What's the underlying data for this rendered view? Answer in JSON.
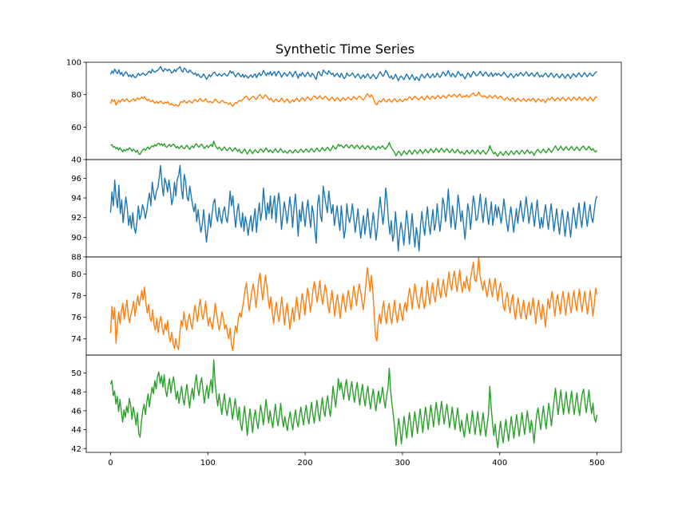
{
  "chart_data": {
    "type": "line",
    "title": "Synthetic Time Series",
    "xlim": [
      -25,
      525
    ],
    "x_ticks": [
      0,
      100,
      200,
      300,
      400,
      500
    ],
    "x_tick_labels": [
      "0",
      "100",
      "200",
      "300",
      "400",
      "500"
    ],
    "x_start": 0,
    "x_end": 500,
    "series_colors": [
      "#1f77b4",
      "#ff7f0e",
      "#2ca02c"
    ],
    "series": [
      {
        "values": [
          92.5,
          94.6,
          93.2,
          95.8,
          94.0,
          93.0,
          95.3,
          92.4,
          93.8,
          91.5,
          92.8,
          94.1,
          93.0,
          91.2,
          92.2,
          90.9,
          92.5,
          91.0,
          90.4,
          91.6,
          93.2,
          91.8,
          92.3,
          93.3,
          92.8,
          91.9,
          92.6,
          93.7,
          94.5,
          93.2,
          95.6,
          94.4,
          93.8,
          94.7,
          95.0,
          96.1,
          97.3,
          95.4,
          94.2,
          96.0,
          95.5,
          94.6,
          95.8,
          94.8,
          93.3,
          94.0,
          95.6,
          94.2,
          95.9,
          96.3,
          97.3,
          94.9,
          93.9,
          96.4,
          95.7,
          94.1,
          93.7,
          95.2,
          94.2,
          93.3,
          92.6,
          93.4,
          91.6,
          92.8,
          91.5,
          90.5,
          91.3,
          92.8,
          91.1,
          89.5,
          90.8,
          92.4,
          91.0,
          92.3,
          93.5,
          93.9,
          92.2,
          91.6,
          93.0,
          92.1,
          91.4,
          92.6,
          93.1,
          92.0,
          91.5,
          92.8,
          94.7,
          93.2,
          94.2,
          92.4,
          91.0,
          92.6,
          93.4,
          91.8,
          91.0,
          92.5,
          90.6,
          92.1,
          91.3,
          90.2,
          91.4,
          92.2,
          90.6,
          91.8,
          92.9,
          90.5,
          92.2,
          93.5,
          91.7,
          92.6,
          95.0,
          93.3,
          91.8,
          93.5,
          92.4,
          94.2,
          91.9,
          93.3,
          94.2,
          91.5,
          93.3,
          94.5,
          93.1,
          90.8,
          92.2,
          93.6,
          92.7,
          91.4,
          92.6,
          94.1,
          92.9,
          91.0,
          93.0,
          94.4,
          92.5,
          90.1,
          92.8,
          91.6,
          93.6,
          92.3,
          91.1,
          92.8,
          93.8,
          92.1,
          91.0,
          93.2,
          92.4,
          90.7,
          89.4,
          93.4,
          94.3,
          92.2,
          91.6,
          95.2,
          94.2,
          93.3,
          92.5,
          94.7,
          93.5,
          92.4,
          93.3,
          91.2,
          92.2,
          93.2,
          91.8,
          90.7,
          93.2,
          91.6,
          89.9,
          90.8,
          93.4,
          92.1,
          91.5,
          92.2,
          93.4,
          92.0,
          90.5,
          91.6,
          92.9,
          91.3,
          89.9,
          91.2,
          92.2,
          90.3,
          91.5,
          92.9,
          91.3,
          89.9,
          91.2,
          92.5,
          91.2,
          89.7,
          91.0,
          92.8,
          94.1,
          92.6,
          91.3,
          92.6,
          95.0,
          93.6,
          91.6,
          90.3,
          91.7,
          89.6,
          90.3,
          92.6,
          90.8,
          88.6,
          90.5,
          91.5,
          90.6,
          89.2,
          90.9,
          92.7,
          91.4,
          89.3,
          90.8,
          92.4,
          90.4,
          89.0,
          91.0,
          90.1,
          88.6,
          91.2,
          92.6,
          91.2,
          90.2,
          91.8,
          93.1,
          91.3,
          90.3,
          91.7,
          92.8,
          90.7,
          91.4,
          93.4,
          91.9,
          90.6,
          91.9,
          94.0,
          93.3,
          91.6,
          92.8,
          94.9,
          92.6,
          91.0,
          93.2,
          92.2,
          90.8,
          92.0,
          94.3,
          93.2,
          91.6,
          92.7,
          91.3,
          89.8,
          91.4,
          93.4,
          92.6,
          90.8,
          92.4,
          94.2,
          93.4,
          91.7,
          91.9,
          93.0,
          94.4,
          92.8,
          91.5,
          93.0,
          94.0,
          92.5,
          91.3,
          92.4,
          93.6,
          91.2,
          92.2,
          93.3,
          92.0,
          93.1,
          92.4,
          91.4,
          92.5,
          93.9,
          92.7,
          91.5,
          90.6,
          92.0,
          93.1,
          91.9,
          90.5,
          91.7,
          92.9,
          91.4,
          92.6,
          93.7,
          92.5,
          91.6,
          92.8,
          94.1,
          92.9,
          91.4,
          92.4,
          93.5,
          92.3,
          91.1,
          92.6,
          93.8,
          92.1,
          90.9,
          92.0,
          91.0,
          92.4,
          93.3,
          92.0,
          90.8,
          92.2,
          93.4,
          92.1,
          90.6,
          91.8,
          92.9,
          91.5,
          90.3,
          91.7,
          92.8,
          91.6,
          90.1,
          91.4,
          92.6,
          91.3,
          90.0,
          91.5,
          93.0,
          92.0,
          90.9,
          92.2,
          93.5,
          92.1,
          91.0,
          92.3,
          93.6,
          92.2,
          91.1,
          92.4,
          93.3,
          92.0,
          91.5,
          92.7,
          93.8,
          94.2
        ],
        "ylim": [
          88,
          97.9
        ],
        "y_ticks": [
          88,
          90,
          92,
          94,
          96
        ],
        "y_tick_labels": [
          "88",
          "90",
          "92",
          "94",
          "96"
        ]
      },
      {
        "values": [
          74.5,
          77.0,
          75.8,
          76.9,
          73.6,
          75.2,
          76.5,
          75.4,
          76.6,
          77.3,
          75.8,
          76.7,
          77.6,
          76.2,
          75.5,
          76.3,
          76.8,
          77.5,
          76.1,
          77.2,
          78.0,
          77.1,
          77.7,
          78.5,
          77.6,
          78.8,
          77.3,
          76.4,
          77.2,
          76.0,
          75.6,
          76.7,
          75.3,
          74.8,
          75.9,
          74.6,
          75.5,
          76.1,
          75.0,
          74.4,
          75.4,
          74.8,
          75.7,
          74.3,
          73.7,
          74.6,
          73.6,
          73.1,
          74.0,
          73.3,
          73.0,
          74.6,
          75.7,
          75.2,
          76.5,
          75.6,
          74.8,
          75.7,
          76.3,
          75.5,
          74.9,
          76.0,
          77.1,
          76.4,
          75.6,
          76.9,
          77.7,
          76.4,
          75.8,
          76.5,
          77.5,
          76.1,
          75.2,
          76.0,
          75.4,
          74.9,
          76.0,
          77.3,
          76.4,
          75.5,
          74.8,
          75.6,
          76.5,
          75.9,
          74.9,
          75.3,
          74.6,
          74.0,
          75.0,
          73.4,
          72.9,
          74.3,
          75.2,
          74.6,
          75.9,
          76.4,
          76.0,
          76.8,
          77.6,
          78.6,
          79.2,
          77.8,
          76.6,
          77.5,
          78.4,
          79.1,
          78.2,
          76.9,
          78.0,
          79.4,
          80.1,
          78.7,
          77.6,
          78.8,
          79.9,
          78.9,
          77.7,
          76.8,
          77.9,
          76.5,
          75.4,
          76.6,
          77.4,
          76.3,
          75.6,
          76.8,
          77.9,
          76.6,
          75.3,
          76.5,
          77.3,
          76.1,
          74.9,
          76.0,
          76.9,
          75.6,
          76.8,
          77.9,
          76.7,
          75.8,
          77.1,
          78.2,
          77.4,
          76.2,
          77.6,
          78.7,
          77.8,
          76.5,
          77.3,
          78.6,
          79.3,
          78.4,
          77.4,
          78.3,
          79.4,
          78.1,
          77.2,
          78.1,
          79.0,
          78.3,
          77.1,
          76.4,
          77.6,
          78.5,
          77.3,
          76.1,
          77.4,
          78.1,
          77.0,
          75.9,
          77.1,
          78.2,
          77.4,
          76.5,
          77.7,
          78.5,
          77.6,
          76.7,
          77.8,
          78.9,
          78.0,
          77.1,
          78.2,
          79.1,
          78.4,
          77.5,
          76.7,
          77.8,
          79.2,
          80.6,
          79.6,
          78.4,
          79.9,
          78.5,
          76.4,
          74.2,
          73.8,
          75.5,
          76.3,
          75.4,
          76.7,
          77.5,
          76.1,
          75.4,
          76.6,
          77.3,
          76.0,
          75.4,
          76.6,
          77.6,
          76.4,
          75.5,
          76.4,
          77.3,
          76.3,
          75.7,
          76.9,
          77.4,
          76.5,
          77.8,
          78.7,
          77.9,
          76.8,
          78.1,
          79.1,
          78.2,
          77.3,
          76.8,
          77.9,
          78.8,
          77.5,
          76.8,
          77.7,
          79.4,
          78.1,
          77.2,
          78.4,
          79.2,
          78.0,
          77.4,
          78.6,
          79.6,
          78.4,
          77.8,
          78.8,
          79.5,
          78.3,
          77.9,
          79.1,
          80.2,
          79.1,
          78.5,
          79.6,
          80.3,
          79.2,
          78.4,
          79.4,
          80.4,
          79.0,
          78.3,
          79.3,
          78.7,
          79.8,
          79.0,
          78.4,
          79.6,
          80.4,
          81.1,
          79.5,
          79.3,
          80.2,
          81.6,
          79.8,
          79.1,
          78.5,
          79.4,
          78.7,
          77.9,
          78.6,
          79.6,
          78.6,
          77.9,
          78.9,
          79.6,
          78.5,
          77.5,
          78.6,
          79.2,
          78.3,
          77.1,
          76.6,
          77.8,
          78.3,
          77.2,
          76.4,
          77.5,
          78.1,
          76.7,
          75.8,
          77.0,
          77.8,
          76.7,
          75.9,
          76.8,
          77.6,
          76.4,
          75.8,
          76.9,
          77.4,
          76.2,
          76.9,
          77.8,
          76.6,
          75.4,
          76.8,
          77.6,
          76.5,
          75.8,
          77.2,
          76.4,
          75.1,
          76.5,
          77.7,
          76.8,
          77.6,
          78.4,
          77.2,
          76.1,
          77.4,
          78.1,
          77.2,
          76.3,
          77.6,
          78.4,
          77.3,
          76.2,
          77.4,
          78.3,
          77.2,
          76.4,
          77.6,
          78.5,
          77.4,
          76.6,
          77.7,
          78.6,
          77.4,
          76.5,
          77.6,
          78.4,
          77.2,
          76.3,
          77.4,
          78.5,
          77.3,
          76.1,
          77.2,
          78.7,
          78.1
        ],
        "ylim": [
          72.5,
          81.6
        ],
        "y_ticks": [
          74,
          76,
          78,
          80
        ],
        "y_tick_labels": [
          "74",
          "76",
          "78",
          "80"
        ]
      },
      {
        "values": [
          48.8,
          49.2,
          47.6,
          48.1,
          46.7,
          47.5,
          45.9,
          47.2,
          46.0,
          44.8,
          46.1,
          45.3,
          46.5,
          45.8,
          47.3,
          46.6,
          45.1,
          46.4,
          45.6,
          44.5,
          45.8,
          43.6,
          43.2,
          44.8,
          46.0,
          46.7,
          45.6,
          46.9,
          47.8,
          46.4,
          47.6,
          48.5,
          47.8,
          49.2,
          48.3,
          49.6,
          50.1,
          48.9,
          49.7,
          48.5,
          49.8,
          48.2,
          47.5,
          48.6,
          49.4,
          47.9,
          48.9,
          49.6,
          48.4,
          47.2,
          48.1,
          46.8,
          47.7,
          48.6,
          47.3,
          46.6,
          47.9,
          48.8,
          47.5,
          46.3,
          47.6,
          48.4,
          47.2,
          48.9,
          49.8,
          48.4,
          47.6,
          48.9,
          49.5,
          48.1,
          46.8,
          47.9,
          48.7,
          47.3,
          48.5,
          49.3,
          47.9,
          51.4,
          49.0,
          47.6,
          46.5,
          47.8,
          46.7,
          45.6,
          46.9,
          47.8,
          46.2,
          45.5,
          46.6,
          47.4,
          46.3,
          45.1,
          46.2,
          47.3,
          46.1,
          45.0,
          46.4,
          44.6,
          43.9,
          45.3,
          46.5,
          45.1,
          43.4,
          44.8,
          46.2,
          45.0,
          43.7,
          45.2,
          46.1,
          44.9,
          44.1,
          45.4,
          46.6,
          45.7,
          44.5,
          45.8,
          47.2,
          45.9,
          44.7,
          46.0,
          45.1,
          44.2,
          45.5,
          46.7,
          45.3,
          44.4,
          45.6,
          46.8,
          45.2,
          44.3,
          45.4,
          44.6,
          43.9,
          45.1,
          45.9,
          44.8,
          44.0,
          45.2,
          46.1,
          44.9,
          44.3,
          45.5,
          46.4,
          45.4,
          44.5,
          45.7,
          46.6,
          45.3,
          44.6,
          45.8,
          46.9,
          45.6,
          44.7,
          46.0,
          47.1,
          45.8,
          44.9,
          46.2,
          47.4,
          46.1,
          45.4,
          46.7,
          47.6,
          46.3,
          45.4,
          46.8,
          48.6,
          47.5,
          46.4,
          47.8,
          49.4,
          48.2,
          49.0,
          48.1,
          47.2,
          48.5,
          49.3,
          48.0,
          47.1,
          48.3,
          49.1,
          47.8,
          46.9,
          48.2,
          49.0,
          47.7,
          46.6,
          47.9,
          48.8,
          47.4,
          46.5,
          47.8,
          48.6,
          47.2,
          46.2,
          47.4,
          48.3,
          47.0,
          46.0,
          47.2,
          48.1,
          46.8,
          47.6,
          48.5,
          47.2,
          46.3,
          47.6,
          48.4,
          50.5,
          48.1,
          46.7,
          45.6,
          44.2,
          42.3,
          43.8,
          45.2,
          44.1,
          42.5,
          43.9,
          45.4,
          44.3,
          43.1,
          44.5,
          45.8,
          44.6,
          43.2,
          44.7,
          45.9,
          44.8,
          43.6,
          44.9,
          46.2,
          45.0,
          43.7,
          45.1,
          46.4,
          45.3,
          44.0,
          45.4,
          46.6,
          45.5,
          44.3,
          45.7,
          46.9,
          45.8,
          44.5,
          45.9,
          47.0,
          45.7,
          44.6,
          45.8,
          46.7,
          45.5,
          44.2,
          45.3,
          46.4,
          45.1,
          44.0,
          45.2,
          46.3,
          45.0,
          43.8,
          45.0,
          44.1,
          43.2,
          44.5,
          45.7,
          44.4,
          43.6,
          44.8,
          46.0,
          44.7,
          43.5,
          44.7,
          45.9,
          44.6,
          43.4,
          44.6,
          45.8,
          44.5,
          43.3,
          44.5,
          45.6,
          48.6,
          46.4,
          44.8,
          43.4,
          44.6,
          43.0,
          42.1,
          43.7,
          44.9,
          43.6,
          42.6,
          43.9,
          45.1,
          43.9,
          42.8,
          44.1,
          45.4,
          44.2,
          43.1,
          44.4,
          45.6,
          44.4,
          43.3,
          44.6,
          45.8,
          44.6,
          43.5,
          44.8,
          46.0,
          44.8,
          43.7,
          45.0,
          44.1,
          42.6,
          44.2,
          45.6,
          46.3,
          45.1,
          44.0,
          45.3,
          46.5,
          45.2,
          44.1,
          45.5,
          46.8,
          45.6,
          44.4,
          45.8,
          47.1,
          48.4,
          46.9,
          45.6,
          46.9,
          48.2,
          46.8,
          45.6,
          46.9,
          48.0,
          46.6,
          45.7,
          47.0,
          48.1,
          46.7,
          45.6,
          46.8,
          47.9,
          46.5,
          45.5,
          46.8,
          47.8,
          48.3,
          46.9,
          45.8,
          47.0,
          48.2,
          46.7,
          45.7,
          46.8,
          45.3,
          44.8,
          45.6
        ],
        "ylim": [
          41.6,
          51.9
        ],
        "y_ticks": [
          42,
          44,
          46,
          48,
          50
        ],
        "y_tick_labels": [
          "42",
          "44",
          "46",
          "48",
          "50"
        ]
      }
    ],
    "overview": {
      "ylim": [
        40,
        100
      ],
      "y_ticks": [
        40,
        60,
        80,
        100
      ],
      "y_tick_labels": [
        "40",
        "60",
        "80",
        "100"
      ]
    }
  }
}
